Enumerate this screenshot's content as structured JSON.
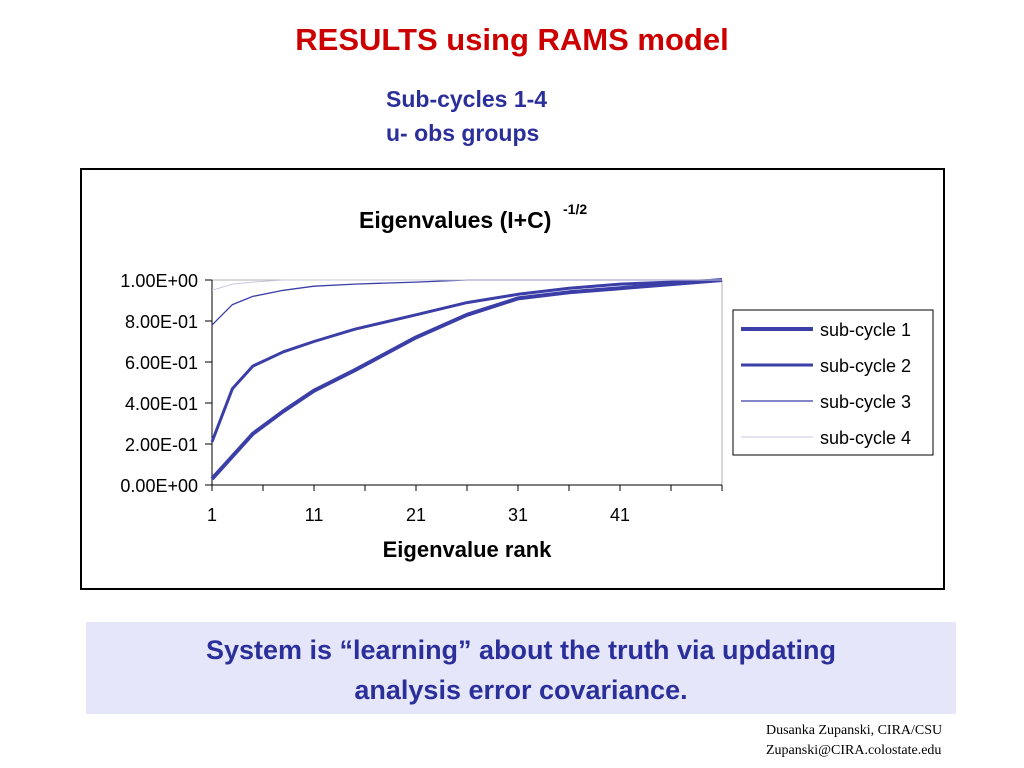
{
  "slide": {
    "title": "RESULTS using RAMS model",
    "subtitle_line1": "Sub-cycles 1-4",
    "subtitle_line2": "u- obs groups",
    "conclusion_line1": "System is “learning” about the truth via updating",
    "conclusion_line2": "analysis error covariance.",
    "credit_line1": "Dusanka Zupanski,  CIRA/CSU",
    "credit_line2": "Zupanski@CIRA.colostate.edu"
  },
  "chart_data": {
    "type": "line",
    "title": "Eigenvalues (I+C)",
    "title_superscript": "-1/2",
    "xlabel": "Eigenvalue rank",
    "ylabel": "",
    "xlim": [
      1,
      51
    ],
    "ylim": [
      0,
      1
    ],
    "x_ticks": [
      "1",
      "11",
      "21",
      "31",
      "41"
    ],
    "y_ticks": [
      "0.00E+00",
      "2.00E-01",
      "4.00E-01",
      "6.00E-01",
      "8.00E-01",
      "1.00E+00"
    ],
    "grid": false,
    "legend_position": "right",
    "x": [
      1,
      3,
      5,
      8,
      11,
      15,
      21,
      26,
      31,
      36,
      41,
      46,
      51
    ],
    "series": [
      {
        "name": "sub-cycle 1",
        "color": "#3b3ea6",
        "values": [
          0.03,
          0.14,
          0.25,
          0.36,
          0.46,
          0.56,
          0.72,
          0.83,
          0.91,
          0.94,
          0.96,
          0.98,
          1.0
        ]
      },
      {
        "name": "sub-cycle 2",
        "color": "#3b3ea6",
        "values": [
          0.21,
          0.47,
          0.58,
          0.65,
          0.7,
          0.76,
          0.83,
          0.89,
          0.93,
          0.96,
          0.98,
          0.99,
          1.0
        ]
      },
      {
        "name": "sub-cycle 3",
        "color": "#3b3ea6",
        "values": [
          0.78,
          0.88,
          0.92,
          0.95,
          0.97,
          0.98,
          0.99,
          1.0,
          1.0,
          1.0,
          1.0,
          1.0,
          1.0
        ]
      },
      {
        "name": "sub-cycle 4",
        "color": "#c8c8dc",
        "values": [
          0.95,
          0.98,
          0.99,
          1.0,
          1.0,
          1.0,
          1.0,
          1.0,
          1.0,
          1.0,
          1.0,
          1.0,
          1.0
        ]
      }
    ]
  }
}
